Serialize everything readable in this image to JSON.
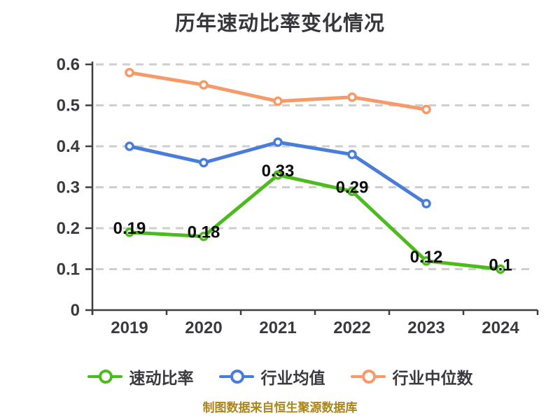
{
  "title": "历年速动比率变化情况",
  "footer": "制图数据来自恒生聚源数据库",
  "colors": {
    "background": "#FFFFFF",
    "grid": "#CFCFCF",
    "axis": "#3F3F42",
    "tick_text": "#3A3A3E",
    "value_label_text": "#0D0D0D",
    "title_text": "#37373B",
    "legend_text": "#3A3A3E",
    "footer_text": "#AC8418"
  },
  "chart_data": {
    "type": "line",
    "title": "历年速动比率变化情况",
    "xlabel": "",
    "ylabel": "",
    "categories": [
      "2019",
      "2020",
      "2021",
      "2022",
      "2023",
      "2024"
    ],
    "series": [
      {
        "key": "industry-median",
        "name": "行业中位数",
        "color": "#F59A68",
        "values": [
          0.58,
          0.55,
          0.51,
          0.52,
          0.49,
          null
        ],
        "show_labels": false,
        "labels": []
      },
      {
        "key": "industry-average",
        "name": "行业均值",
        "color": "#4A7CD9",
        "values": [
          0.4,
          0.36,
          0.41,
          0.38,
          0.26,
          null
        ],
        "show_labels": false,
        "labels": []
      },
      {
        "key": "quick-ratio",
        "name": "速动比率",
        "color": "#4CBC1D",
        "values": [
          0.19,
          0.18,
          0.33,
          0.29,
          0.12,
          0.1
        ],
        "show_labels": true,
        "labels": [
          "0.19",
          "0.18",
          "0.33",
          "0.29",
          "0.12",
          "0.1"
        ]
      }
    ],
    "legend_order": [
      "quick-ratio",
      "industry-average",
      "industry-median"
    ],
    "ylim": [
      0,
      0.6
    ],
    "y_ticks": [
      0,
      0.1,
      0.2,
      0.3,
      0.4,
      0.5,
      0.6
    ],
    "y_tick_labels": [
      "0",
      "0.1",
      "0.2",
      "0.3",
      "0.4",
      "0.5",
      "0.6"
    ],
    "grid": true,
    "grid_style": "dashed",
    "legend_position": "bottom",
    "marker": "circle-white-fill"
  }
}
